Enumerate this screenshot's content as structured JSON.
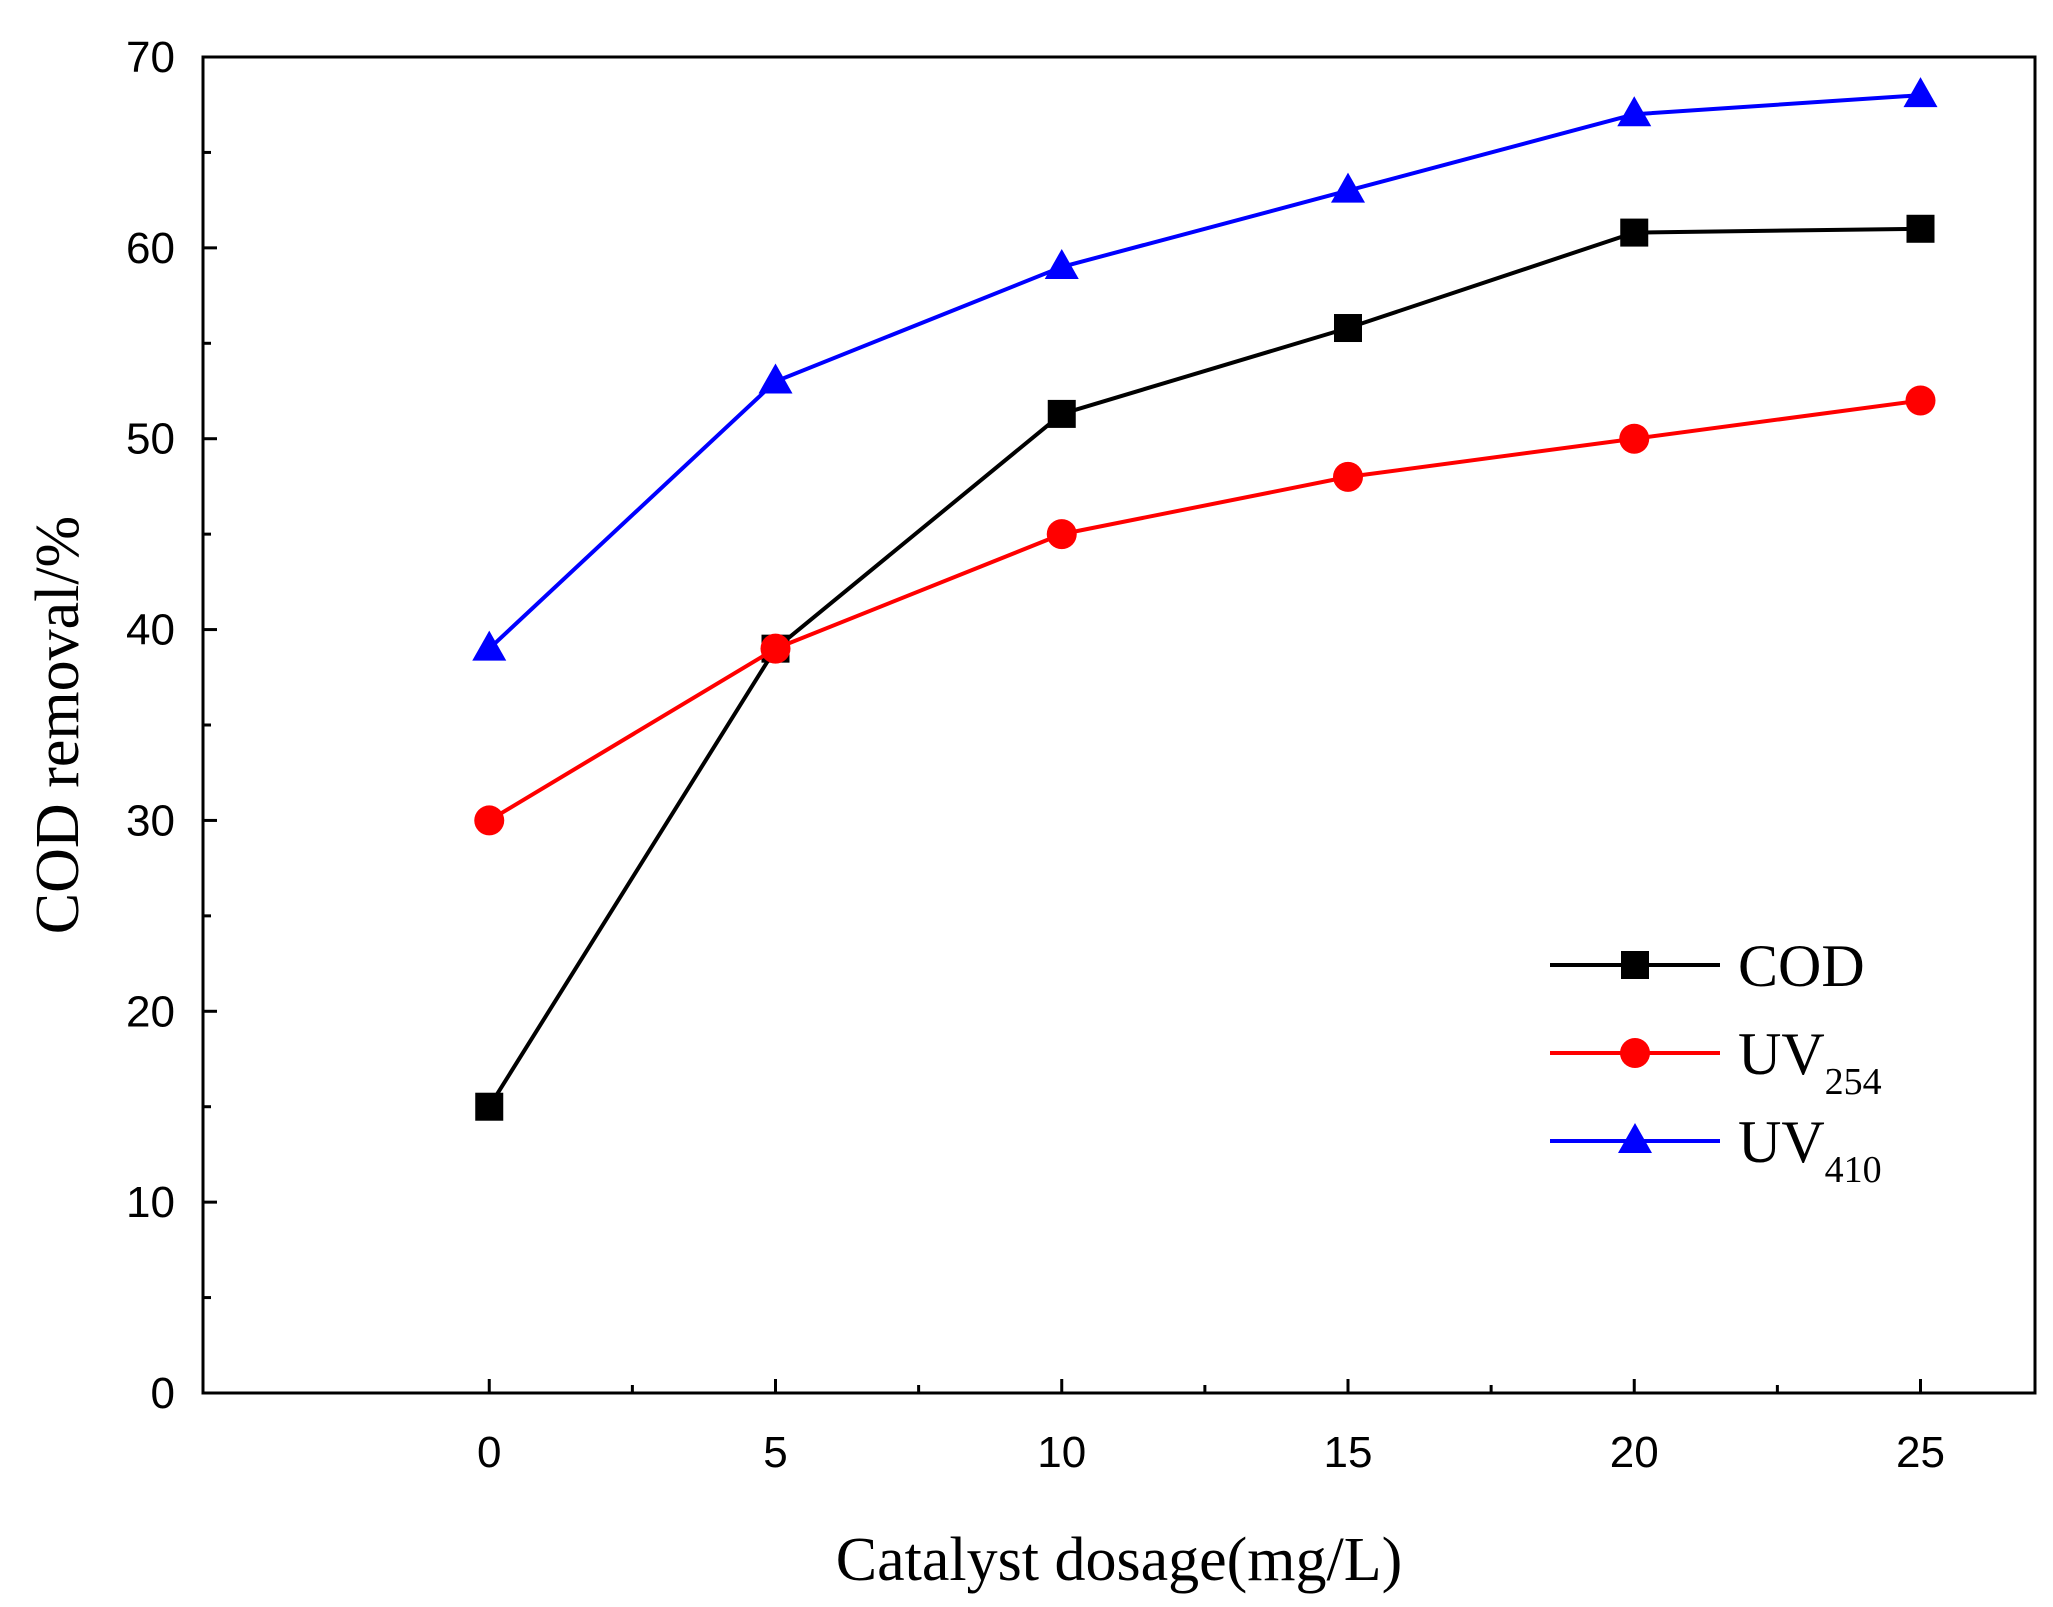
{
  "chart_data": {
    "type": "line",
    "title": "",
    "xlabel": "Catalyst dosage(mg/L)",
    "ylabel": "COD removal/%",
    "xlim": [
      -5,
      27
    ],
    "ylim": [
      0,
      70
    ],
    "xticks": [
      0,
      5,
      10,
      15,
      20,
      25
    ],
    "xminor": [
      2.5,
      7.5,
      12.5,
      17.5,
      22.5
    ],
    "yticks": [
      0,
      10,
      20,
      30,
      40,
      50,
      60,
      70
    ],
    "yminor": [
      5,
      15,
      25,
      35,
      45,
      55,
      65
    ],
    "grid": false,
    "legend_position": "bottom-right",
    "x": [
      0,
      5,
      10,
      15,
      20,
      25
    ],
    "series": [
      {
        "name": "COD",
        "label_main": "COD",
        "label_sub": "",
        "color": "#000000",
        "marker": "square",
        "values": [
          15,
          39,
          51.3,
          55.8,
          60.8,
          61
        ]
      },
      {
        "name": "UV254",
        "label_main": "UV",
        "label_sub": "254",
        "color": "#ff0000",
        "marker": "circle",
        "values": [
          30,
          39,
          45,
          48,
          50,
          52
        ]
      },
      {
        "name": "UV410",
        "label_main": "UV",
        "label_sub": "410",
        "color": "#0000ff",
        "marker": "triangle",
        "values": [
          39,
          53,
          59,
          63,
          67,
          68
        ]
      }
    ]
  }
}
